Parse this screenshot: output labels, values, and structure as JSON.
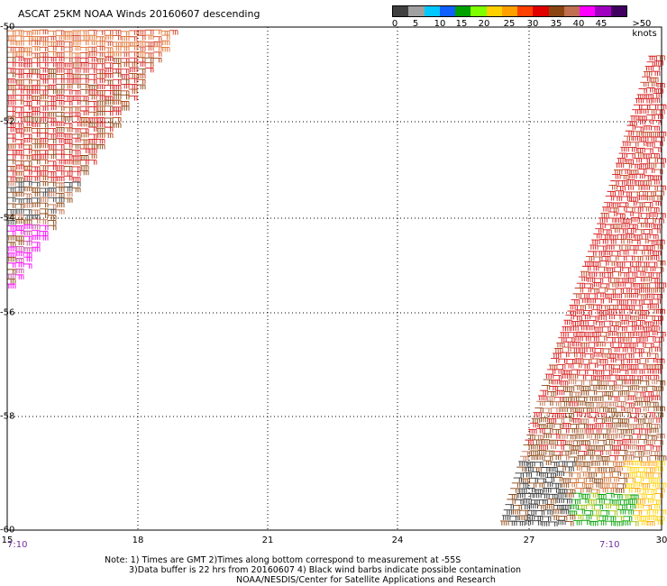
{
  "title": "ASCAT 25KM NOAA Winds 20160607 descending",
  "colorbar": {
    "colors": [
      "#404040",
      "#a0a0a0",
      "#00c8ff",
      "#1060ff",
      "#00a000",
      "#80ff00",
      "#ffd000",
      "#ffa000",
      "#ff4000",
      "#e00000",
      "#8b4513",
      "#c07050",
      "#ff00ff",
      "#a000c0",
      "#400060"
    ],
    "tick_labels": [
      "0",
      "5",
      "10",
      "15",
      "20",
      "25",
      "30",
      "35",
      "40",
      "45",
      ">50 knots"
    ]
  },
  "axes": {
    "y_labels": [
      "-50",
      "-52",
      "-54",
      "-56",
      "-58",
      "-60"
    ],
    "x_labels": [
      "15",
      "18",
      "21",
      "24",
      "27",
      "30"
    ],
    "grid": "dotted"
  },
  "times": {
    "left": "7:10",
    "right": "7:10"
  },
  "notes": {
    "line1": "Note: 1) Times are GMT 2)Times along bottom correspond to measurement at -55S",
    "line2": "3)Data buffer is 22 hrs from 20160607 4) Black wind barbs indicate possible contamination",
    "line3": "NOAA/NESDIS/Center for Satellite Applications and Research"
  }
}
